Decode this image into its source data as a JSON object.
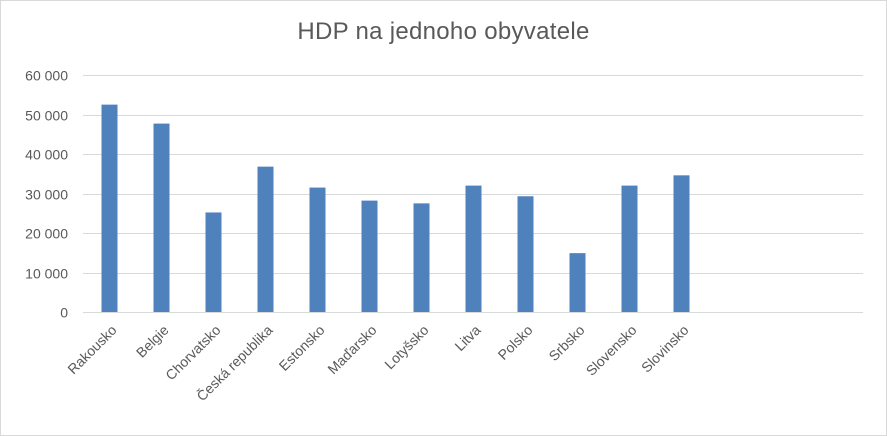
{
  "chart_data": {
    "type": "bar",
    "title": "HDP na jednoho obyvatele",
    "xlabel": "",
    "ylabel": "",
    "categories": [
      "Rakousko",
      "Belgie",
      "Chorvatsko",
      "Česká republika",
      "Estonsko",
      "Maďarsko",
      "Lotyšsko",
      "Litva",
      "Polsko",
      "Srbsko",
      "Slovensko",
      "Slovinsko"
    ],
    "series": [
      {
        "values": [
          52500,
          47700,
          25200,
          36800,
          31500,
          28200,
          27500,
          32000,
          29300,
          14900,
          32000,
          34600
        ]
      }
    ],
    "ylim": [
      0,
      60000
    ],
    "yticks": [
      0,
      10000,
      20000,
      30000,
      40000,
      50000,
      60000
    ],
    "ytick_labels": [
      "0",
      "10 000",
      "20 000",
      "30 000",
      "40 000",
      "50 000",
      "60 000"
    ],
    "grid": true,
    "legend": "none",
    "bar_color": "#4f81bd",
    "grid_color": "#d9d9d9"
  }
}
